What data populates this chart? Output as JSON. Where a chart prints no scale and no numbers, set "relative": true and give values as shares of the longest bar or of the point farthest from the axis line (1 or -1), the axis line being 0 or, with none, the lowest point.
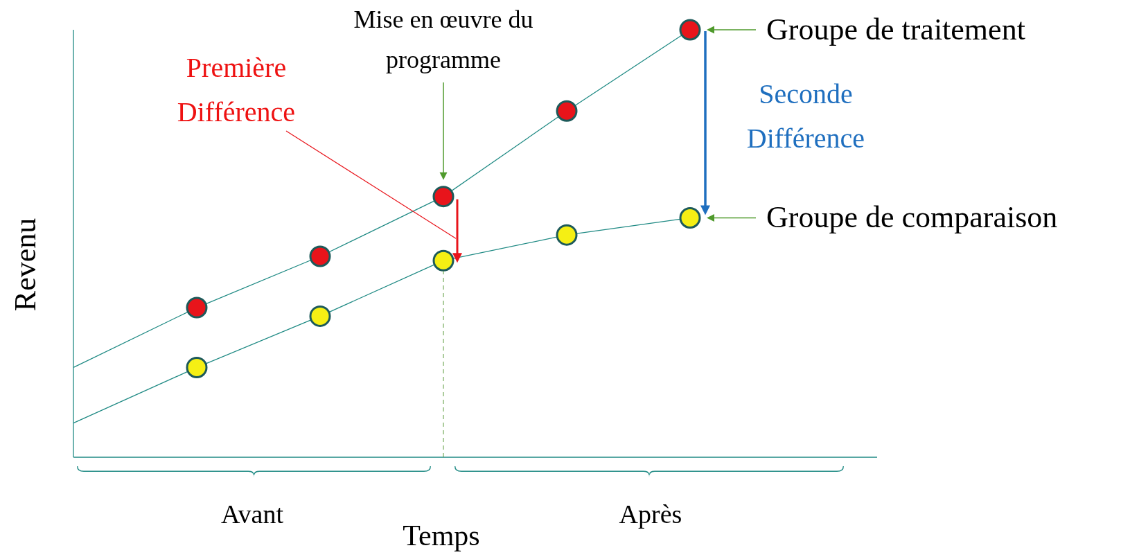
{
  "chart_data": {
    "type": "line",
    "relative": true,
    "xlabel": "Temps",
    "ylabel": "Revenu",
    "categories": [
      null,
      null,
      null,
      null,
      null,
      null
    ],
    "series": [
      {
        "name": "Groupe de traitement",
        "color": "#1f8a84",
        "marker": "circle",
        "colors": [
          null,
          "#e8141b",
          "#e8141b",
          "#e8141b",
          "#e8141b",
          "#e8141b"
        ],
        "values": [
          0.21,
          0.35,
          0.47,
          0.61,
          0.81,
          1
        ]
      },
      {
        "name": "Groupe de comparaison",
        "color": "#1f8a84",
        "marker": "circle",
        "colors": [
          null,
          "#f5ef14",
          "#f5ef14",
          "#f5ef14",
          "#f5ef14",
          "#f5ef14"
        ],
        "values": [
          0.08,
          0.21,
          0.33,
          0.46,
          0.52,
          0.56
        ]
      }
    ],
    "annotations": [
      "Première Différence",
      "Seconde Différence",
      "Avant",
      "Après",
      "Mise en œuvre du programme"
    ]
  }
}
